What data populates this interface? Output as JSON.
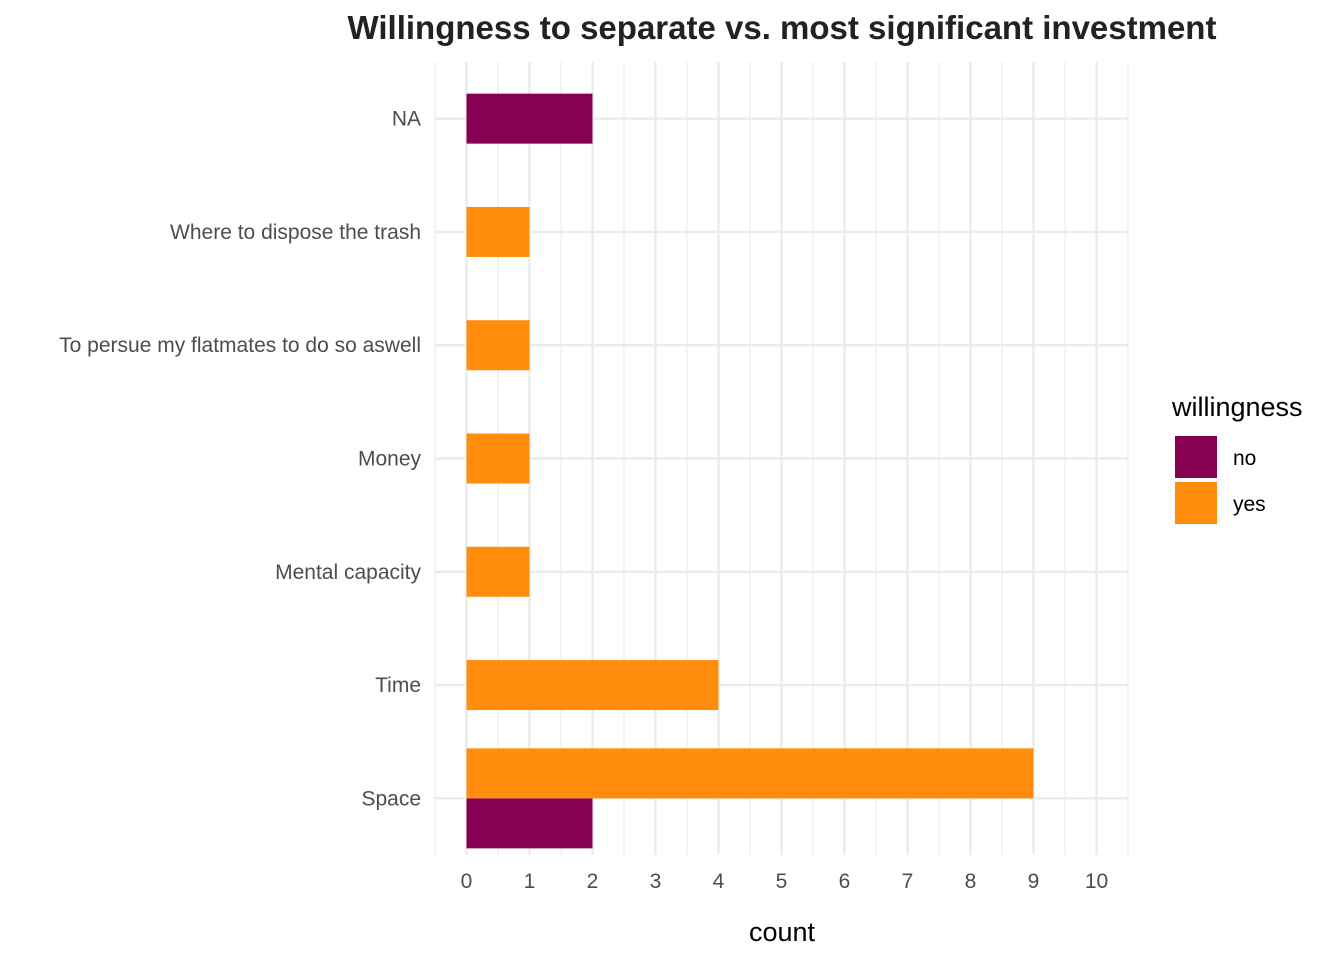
{
  "chart_data": {
    "type": "bar",
    "orientation": "horizontal",
    "position": "dodge",
    "title": "Willingness to separate vs. most significant investment",
    "xlabel": "count",
    "ylabel": "",
    "xlim": [
      -0.5,
      10.5
    ],
    "x_ticks": [
      0,
      1,
      2,
      3,
      4,
      5,
      6,
      7,
      8,
      9,
      10
    ],
    "categories": [
      "NA",
      "Where to dispose the trash",
      "To persue my flatmates to do so aswell",
      "Money",
      "Mental capacity",
      "Time",
      "Space"
    ],
    "grid": true,
    "legend": {
      "title": "willingness",
      "position": "right"
    },
    "series": [
      {
        "name": "no",
        "color": "#870052",
        "values": [
          2,
          0,
          0,
          0,
          0,
          0,
          2
        ]
      },
      {
        "name": "yes",
        "color": "#FF8C0C",
        "values": [
          0,
          1,
          1,
          1,
          1,
          4,
          9
        ]
      }
    ]
  }
}
